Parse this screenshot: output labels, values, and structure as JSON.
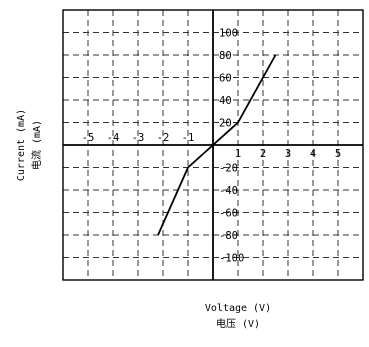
{
  "chart_data": {
    "type": "line",
    "title": "",
    "xlabel_en": "Voltage (V)",
    "xlabel_cn": "电压 (V)",
    "ylabel_en": "Current (mA)",
    "ylabel_cn": "电流 (mA)",
    "xlim": [
      -6,
      6
    ],
    "ylim": [
      -120,
      120
    ],
    "x_ticks": [
      -5,
      -4,
      -3,
      -2,
      -1,
      1,
      2,
      3,
      4,
      5
    ],
    "y_ticks": [
      100,
      80,
      60,
      40,
      20,
      -20,
      -40,
      -60,
      -80,
      -100
    ],
    "grid": true,
    "grid_style": "dashed",
    "series": [
      {
        "x": [
          -2.2,
          -1,
          0,
          1,
          2.5
        ],
        "y": [
          -80,
          -20,
          0,
          20,
          80
        ]
      }
    ]
  }
}
